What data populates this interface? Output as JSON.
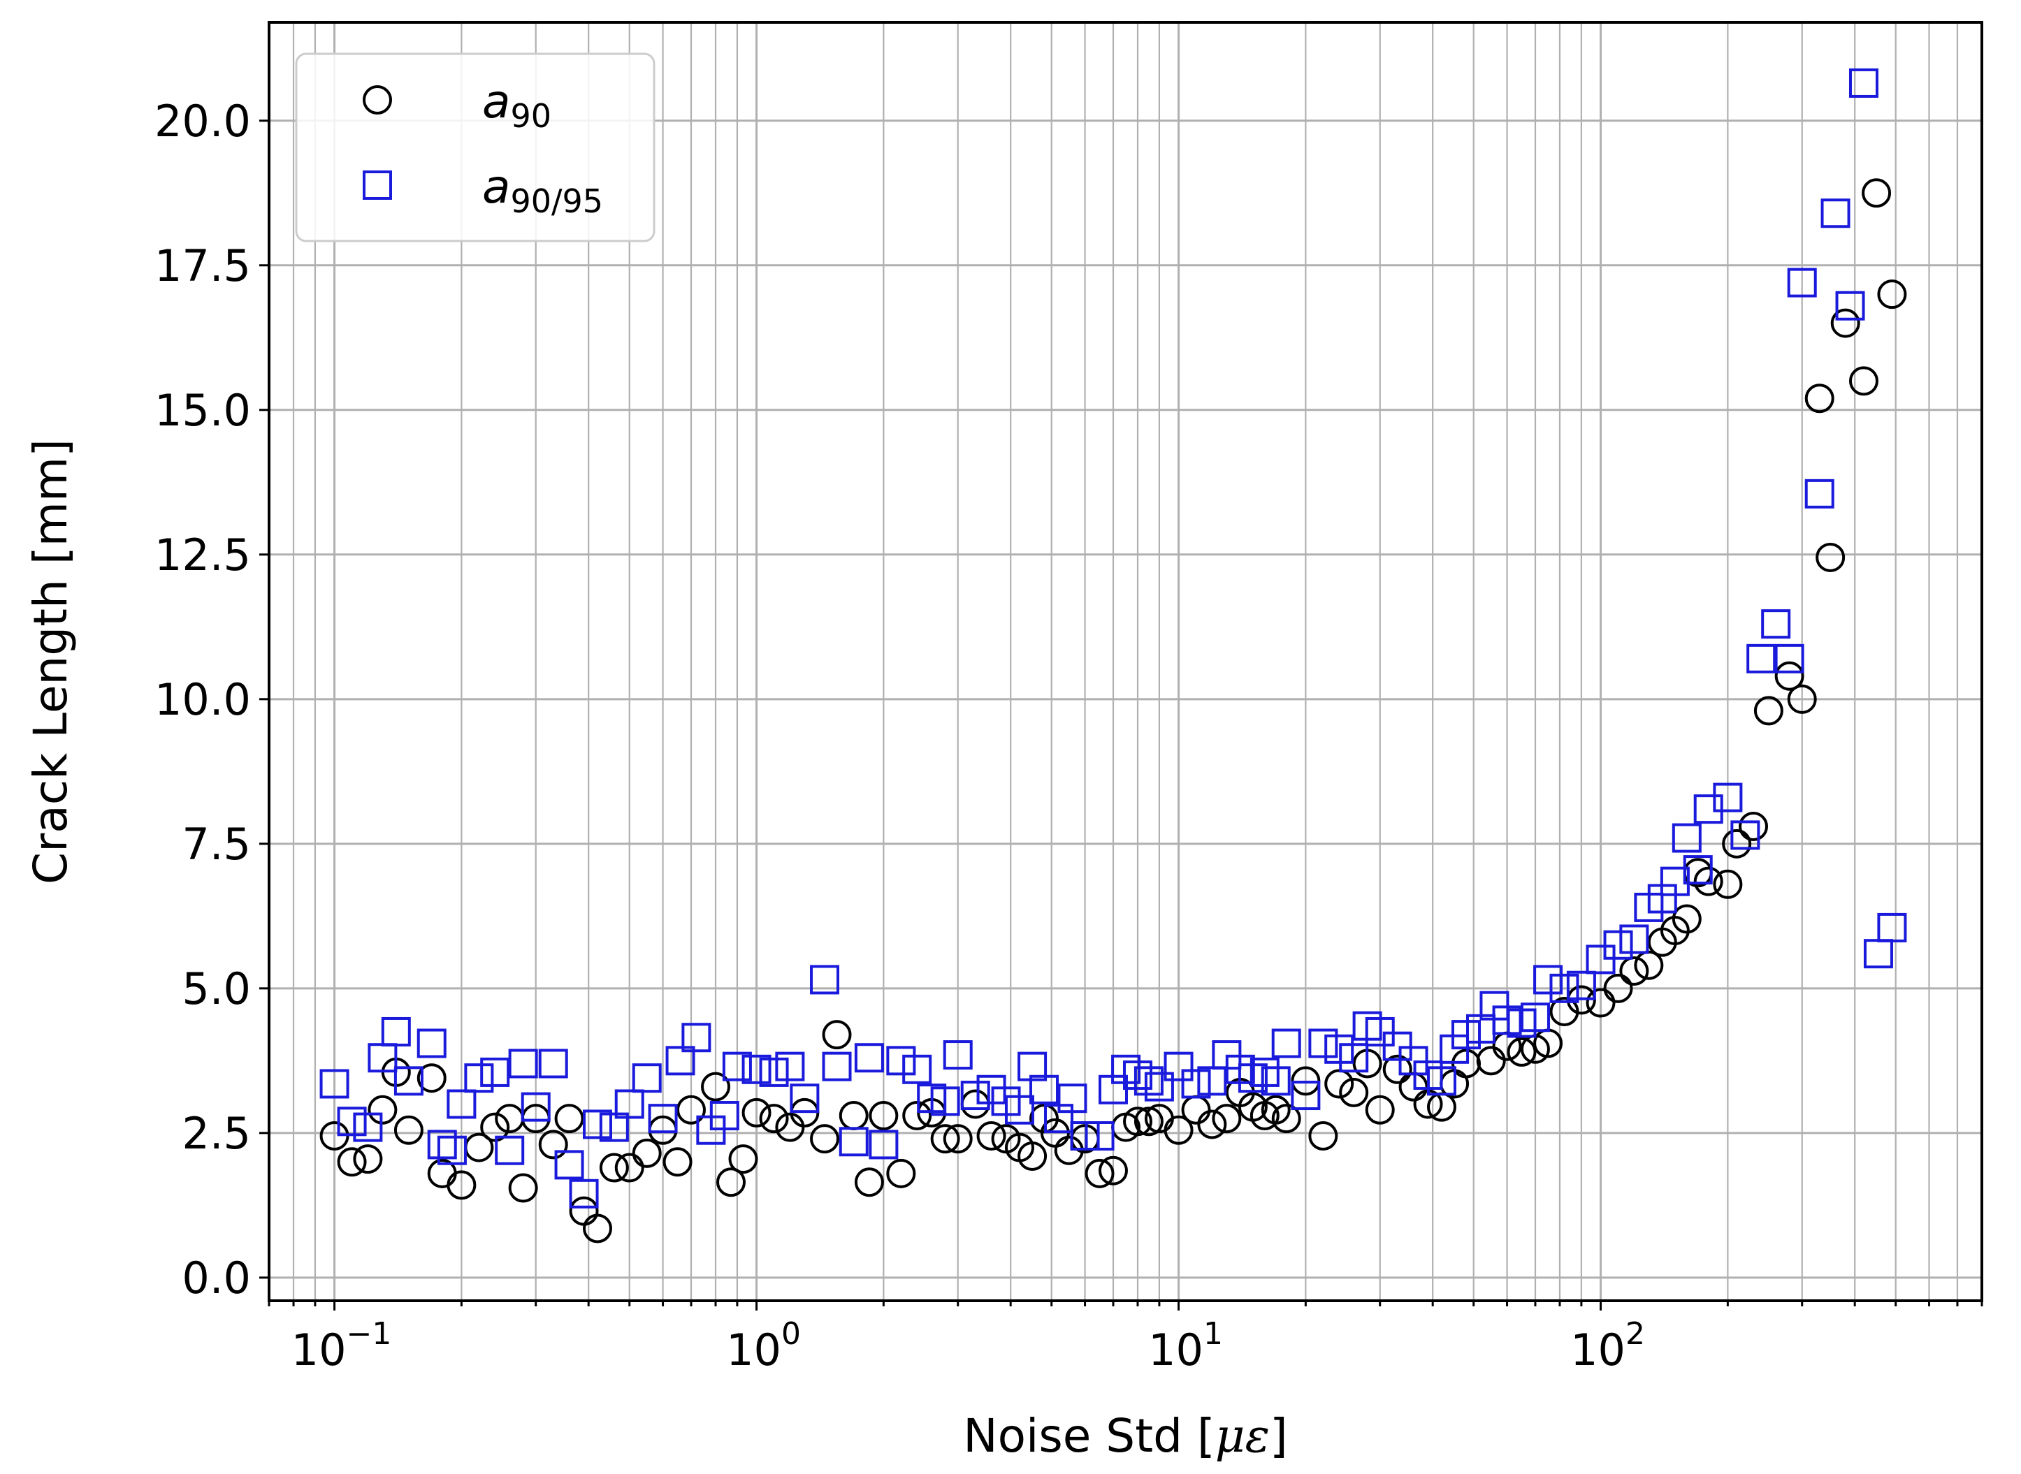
{
  "chart_data": {
    "type": "scatter",
    "title": "",
    "xlabel": "Noise Std [",
    "xlabel_symbol": "με",
    "xlabel_suffix": "]",
    "ylabel": "Crack Length [mm]",
    "xscale": "log",
    "xlim": [
      0.07,
      800
    ],
    "ylim": [
      -0.4,
      21.7
    ],
    "grid": true,
    "grid_minor": true,
    "legend": {
      "placement": "top-left"
    },
    "x_ticks": [
      {
        "value": 0.1,
        "base": "10",
        "exp": "−1"
      },
      {
        "value": 1,
        "base": "10",
        "exp": "0"
      },
      {
        "value": 10,
        "base": "10",
        "exp": "1"
      },
      {
        "value": 100,
        "base": "10",
        "exp": "2"
      }
    ],
    "y_ticks": [
      {
        "value": 0,
        "label": "0.0"
      },
      {
        "value": 2.5,
        "label": "2.5"
      },
      {
        "value": 5,
        "label": "5.0"
      },
      {
        "value": 7.5,
        "label": "7.5"
      },
      {
        "value": 10,
        "label": "10.0"
      },
      {
        "value": 12.5,
        "label": "12.5"
      },
      {
        "value": 15,
        "label": "15.0"
      },
      {
        "value": 17.5,
        "label": "17.5"
      },
      {
        "value": 20,
        "label": "20.0"
      }
    ],
    "series": [
      {
        "name": "a90",
        "legend_main": "a",
        "legend_sub": "90",
        "marker": "circle",
        "color": "#000000",
        "x": [
          0.1,
          0.11,
          0.12,
          0.13,
          0.14,
          0.15,
          0.17,
          0.18,
          0.2,
          0.22,
          0.24,
          0.26,
          0.28,
          0.3,
          0.33,
          0.36,
          0.39,
          0.42,
          0.46,
          0.5,
          0.55,
          0.6,
          0.65,
          0.7,
          0.8,
          0.87,
          0.93,
          1.0,
          1.1,
          1.2,
          1.3,
          1.45,
          1.55,
          1.7,
          1.85,
          2.0,
          2.2,
          2.4,
          2.6,
          2.8,
          3.0,
          3.3,
          3.6,
          3.9,
          4.2,
          4.5,
          4.8,
          5.1,
          5.5,
          6.0,
          6.5,
          7.0,
          7.5,
          8.0,
          8.5,
          9.0,
          10.0,
          11.0,
          12.0,
          13.0,
          14.0,
          15.0,
          16.0,
          17.0,
          18.0,
          20.0,
          22.0,
          24.0,
          26.0,
          28.0,
          30.0,
          33.0,
          36.0,
          39.0,
          42.0,
          45.0,
          48.0,
          55.0,
          60.0,
          65.0,
          70.0,
          75.0,
          82.0,
          90.0,
          100.0,
          110.0,
          120.0,
          130.0,
          140.0,
          150.0,
          160.0,
          170.0,
          180.0,
          200.0,
          210.0,
          230.0,
          250.0,
          280.0,
          300.0,
          330.0,
          350.0,
          380.0,
          420.0,
          450.0,
          490.0
        ],
        "y": [
          2.45,
          2.0,
          2.05,
          2.9,
          3.55,
          2.55,
          3.45,
          1.8,
          1.6,
          2.25,
          2.6,
          2.75,
          1.55,
          2.75,
          2.3,
          2.75,
          1.15,
          0.85,
          1.9,
          1.9,
          2.15,
          2.55,
          2.0,
          2.9,
          3.3,
          1.65,
          2.05,
          2.85,
          2.75,
          2.6,
          2.85,
          2.4,
          4.2,
          2.8,
          1.65,
          2.8,
          1.8,
          2.8,
          2.85,
          2.4,
          2.4,
          3.0,
          2.45,
          2.4,
          2.25,
          2.1,
          2.75,
          2.5,
          2.2,
          2.4,
          1.8,
          1.85,
          2.6,
          2.7,
          2.7,
          2.75,
          2.55,
          2.9,
          2.65,
          2.75,
          3.2,
          2.95,
          2.8,
          2.9,
          2.75,
          3.4,
          2.45,
          3.35,
          3.2,
          3.7,
          2.9,
          3.6,
          3.3,
          3.0,
          2.95,
          3.35,
          3.7,
          3.75,
          4.0,
          3.9,
          3.95,
          4.05,
          4.6,
          4.8,
          4.75,
          5.0,
          5.3,
          5.4,
          5.8,
          6.0,
          6.2,
          7.0,
          6.85,
          6.8,
          7.5,
          7.8,
          9.8,
          10.4,
          10.0,
          15.2,
          12.45,
          16.5,
          15.5,
          18.75,
          17.0
        ]
      },
      {
        "name": "a90/95",
        "legend_main": "a",
        "legend_sub": "90/95",
        "marker": "square",
        "color": "#1a1adc",
        "x": [
          0.1,
          0.11,
          0.12,
          0.13,
          0.14,
          0.15,
          0.17,
          0.18,
          0.19,
          0.2,
          0.22,
          0.24,
          0.26,
          0.28,
          0.3,
          0.33,
          0.36,
          0.39,
          0.42,
          0.46,
          0.5,
          0.55,
          0.6,
          0.66,
          0.72,
          0.78,
          0.84,
          0.9,
          1.0,
          1.1,
          1.2,
          1.3,
          1.45,
          1.55,
          1.7,
          1.85,
          2.0,
          2.2,
          2.4,
          2.6,
          2.8,
          3.0,
          3.3,
          3.6,
          3.9,
          4.2,
          4.5,
          4.8,
          5.2,
          5.6,
          6.0,
          6.5,
          7.0,
          7.5,
          8.0,
          8.5,
          9.0,
          10.0,
          11.0,
          12.0,
          13.0,
          14.0,
          15.0,
          16.0,
          17.0,
          18.0,
          20.0,
          22.0,
          24.0,
          26.0,
          28.0,
          30.0,
          33.0,
          36.0,
          39.0,
          42.0,
          45.0,
          48.0,
          52.0,
          56.0,
          60.0,
          65.0,
          70.0,
          75.0,
          82.0,
          90.0,
          100.0,
          110.0,
          120.0,
          130.0,
          140.0,
          150.0,
          160.0,
          170.0,
          180.0,
          200.0,
          220.0,
          240.0,
          260.0,
          280.0,
          300.0,
          330.0,
          360.0,
          390.0,
          420.0,
          455.0,
          490.0
        ],
        "y": [
          3.35,
          2.7,
          2.6,
          3.8,
          4.25,
          3.4,
          4.05,
          2.3,
          2.2,
          3.0,
          3.45,
          3.55,
          2.2,
          3.7,
          2.95,
          3.7,
          1.95,
          1.45,
          2.65,
          2.6,
          3.0,
          3.45,
          2.75,
          3.75,
          4.15,
          2.55,
          2.8,
          3.65,
          3.6,
          3.55,
          3.65,
          3.1,
          5.15,
          3.65,
          2.35,
          3.8,
          2.3,
          3.75,
          3.6,
          3.1,
          3.05,
          3.85,
          3.15,
          3.25,
          3.05,
          2.9,
          3.65,
          3.25,
          2.75,
          3.1,
          2.45,
          2.45,
          3.25,
          3.6,
          3.5,
          3.4,
          3.3,
          3.65,
          3.35,
          3.4,
          3.85,
          3.6,
          3.45,
          3.55,
          3.4,
          4.05,
          3.15,
          4.05,
          3.95,
          3.8,
          4.35,
          4.25,
          4.0,
          3.75,
          3.5,
          3.4,
          3.95,
          4.2,
          4.3,
          4.7,
          4.45,
          4.4,
          4.5,
          5.15,
          5.0,
          5.05,
          5.5,
          5.75,
          5.85,
          6.4,
          6.55,
          6.85,
          7.6,
          7.05,
          8.1,
          8.3,
          7.65,
          10.7,
          11.3,
          10.7,
          17.2,
          13.55,
          18.4,
          16.8,
          20.65,
          5.6,
          6.05
        ]
      }
    ]
  }
}
